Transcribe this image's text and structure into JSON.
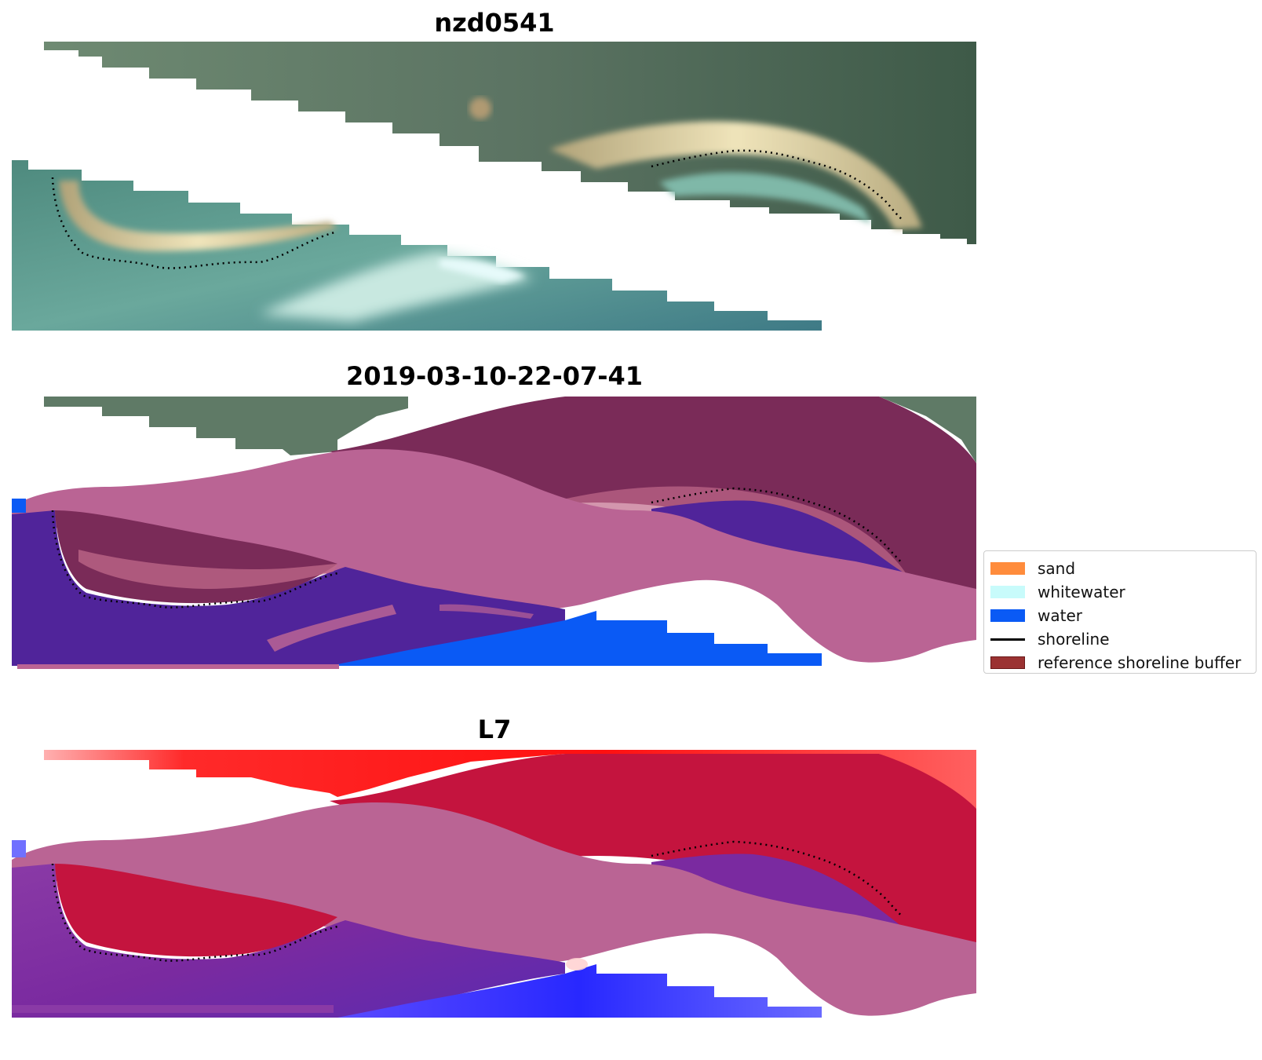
{
  "panels": [
    {
      "title": "nzd0541"
    },
    {
      "title": "2019-03-10-22-07-41"
    },
    {
      "title": "L7"
    }
  ],
  "legend": {
    "items": [
      {
        "label": "sand",
        "kind": "patch",
        "color": "#ff8c3c"
      },
      {
        "label": "whitewater",
        "kind": "patch",
        "color": "#c8fbfb"
      },
      {
        "label": "water",
        "kind": "patch",
        "color": "#0a5af5"
      },
      {
        "label": "shoreline",
        "kind": "line",
        "color": "#000000"
      },
      {
        "label": "reference shoreline buffer",
        "kind": "patch",
        "color": "#9b3232"
      }
    ]
  },
  "colors": {
    "land_green": "#556e5c",
    "shallow_water": "#5f9a98",
    "sand_bright": "#e6dcae",
    "buffer_pink": "#ba6494",
    "water_class": "#50249a",
    "deep_water_class": "#0a5af5",
    "buffer_over_land": "#7a2b58",
    "l7_red": "#ff2020",
    "l7_crimson": "#c4143e",
    "l7_purple": "#7a2aa0",
    "l7_blue": "#3a3aff"
  }
}
